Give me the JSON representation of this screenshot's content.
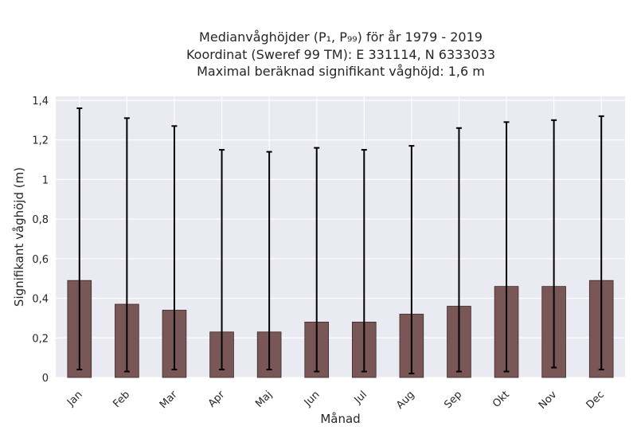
{
  "chart_data": {
    "type": "bar",
    "title": [
      "Medianvåghöjder (P₁, P₉₉) för år 1979 - 2019",
      "Koordinat (Sweref 99 TM): E 331114, N 6333033",
      "Maximal beräknad signifikant våghöjd: 1,6 m"
    ],
    "xlabel": "Månad",
    "ylabel": "Signifikant våghöjd (m)",
    "categories": [
      "Jan",
      "Feb",
      "Mar",
      "Apr",
      "Maj",
      "Jun",
      "Jul",
      "Aug",
      "Sep",
      "Okt",
      "Nov",
      "Dec"
    ],
    "values": [
      0.49,
      0.37,
      0.34,
      0.23,
      0.23,
      0.28,
      0.28,
      0.32,
      0.36,
      0.46,
      0.46,
      0.49
    ],
    "error_low": [
      0.04,
      0.03,
      0.04,
      0.04,
      0.04,
      0.03,
      0.03,
      0.02,
      0.03,
      0.03,
      0.05,
      0.04
    ],
    "error_high": [
      1.36,
      1.31,
      1.27,
      1.15,
      1.14,
      1.16,
      1.15,
      1.17,
      1.26,
      1.29,
      1.3,
      1.32
    ],
    "ylim": [
      0,
      1.42
    ],
    "yticks": [
      0,
      0.2,
      0.4,
      0.6,
      0.8,
      1,
      1.2,
      1.4
    ],
    "ytick_labels": [
      "0",
      "0,2",
      "0,4",
      "0,6",
      "0,8",
      "1",
      "1,2",
      "1,4"
    ],
    "grid": true,
    "colors": {
      "bar": "#7a5757",
      "bar_edge": "#3a2a2a",
      "error_bar": "#000000",
      "plot_background": "#eaeaf2",
      "grid": "#ffffff"
    }
  }
}
